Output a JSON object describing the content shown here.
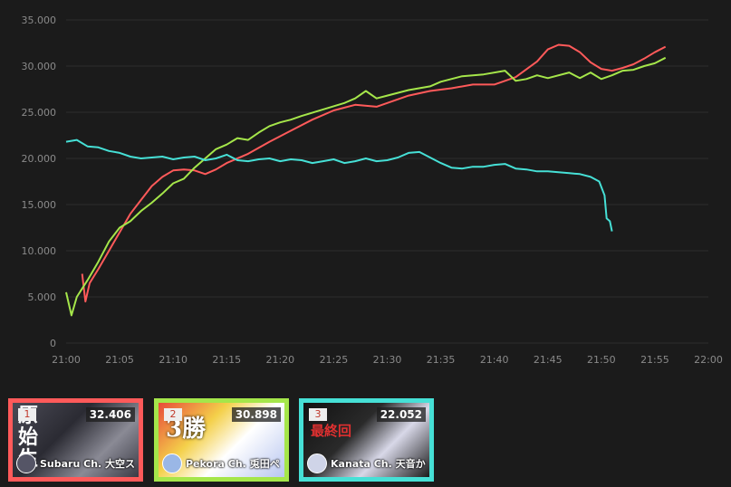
{
  "chart_data": {
    "type": "line",
    "x_ticks": [
      "21:00",
      "21:05",
      "21:10",
      "21:15",
      "21:20",
      "21:25",
      "21:30",
      "21:35",
      "21:40",
      "21:45",
      "21:50",
      "21:55",
      "22:00"
    ],
    "y_ticks": [
      "35.000",
      "30.000",
      "25.000",
      "20.000",
      "15.000",
      "10.000",
      "5.000",
      "0"
    ],
    "ylim": [
      0,
      35000
    ],
    "xlim_minutes": [
      0,
      60
    ],
    "grid": true,
    "series": [
      {
        "name": "Subaru Ch.",
        "color": "#ff5a5a",
        "points": [
          [
            1.5,
            7500
          ],
          [
            1.8,
            4500
          ],
          [
            2.2,
            6500
          ],
          [
            3,
            8000
          ],
          [
            4,
            10000
          ],
          [
            5,
            12000
          ],
          [
            6,
            14000
          ],
          [
            7,
            15500
          ],
          [
            8,
            17000
          ],
          [
            9,
            18000
          ],
          [
            10,
            18700
          ],
          [
            11,
            18800
          ],
          [
            12,
            18700
          ],
          [
            13,
            18300
          ],
          [
            14,
            18800
          ],
          [
            15,
            19500
          ],
          [
            17,
            20500
          ],
          [
            19,
            21800
          ],
          [
            21,
            23000
          ],
          [
            23,
            24200
          ],
          [
            25,
            25200
          ],
          [
            27,
            25800
          ],
          [
            29,
            25600
          ],
          [
            30,
            26000
          ],
          [
            32,
            26800
          ],
          [
            34,
            27300
          ],
          [
            36,
            27600
          ],
          [
            38,
            28000
          ],
          [
            40,
            28000
          ],
          [
            42,
            28800
          ],
          [
            44,
            30500
          ],
          [
            45,
            31800
          ],
          [
            46,
            32300
          ],
          [
            47,
            32200
          ],
          [
            48,
            31500
          ],
          [
            49,
            30400
          ],
          [
            50,
            29700
          ],
          [
            51,
            29500
          ],
          [
            52,
            29800
          ],
          [
            53,
            30200
          ],
          [
            54,
            30800
          ],
          [
            55,
            31500
          ],
          [
            56,
            32100
          ]
        ]
      },
      {
        "name": "Pekora Ch.",
        "color": "#a5e64a",
        "points": [
          [
            0,
            5500
          ],
          [
            0.5,
            3000
          ],
          [
            1,
            5000
          ],
          [
            2,
            6800
          ],
          [
            3,
            8800
          ],
          [
            4,
            11000
          ],
          [
            5,
            12500
          ],
          [
            6,
            13200
          ],
          [
            7,
            14300
          ],
          [
            8,
            15200
          ],
          [
            9,
            16200
          ],
          [
            10,
            17300
          ],
          [
            11,
            17800
          ],
          [
            12,
            19000
          ],
          [
            13,
            20000
          ],
          [
            14,
            21000
          ],
          [
            15,
            21500
          ],
          [
            16,
            22200
          ],
          [
            17,
            22000
          ],
          [
            18,
            22800
          ],
          [
            19,
            23500
          ],
          [
            20,
            23900
          ],
          [
            21,
            24200
          ],
          [
            22,
            24600
          ],
          [
            24,
            25300
          ],
          [
            26,
            26000
          ],
          [
            27,
            26500
          ],
          [
            28,
            27300
          ],
          [
            29,
            26500
          ],
          [
            30,
            26800
          ],
          [
            32,
            27400
          ],
          [
            34,
            27800
          ],
          [
            35,
            28300
          ],
          [
            37,
            28900
          ],
          [
            39,
            29100
          ],
          [
            41,
            29500
          ],
          [
            42,
            28400
          ],
          [
            43,
            28600
          ],
          [
            44,
            29000
          ],
          [
            45,
            28700
          ],
          [
            47,
            29300
          ],
          [
            48,
            28700
          ],
          [
            49,
            29300
          ],
          [
            50,
            28600
          ],
          [
            51,
            29000
          ],
          [
            52,
            29500
          ],
          [
            53,
            29600
          ],
          [
            54,
            30000
          ],
          [
            55,
            30300
          ],
          [
            56,
            30900
          ]
        ]
      },
      {
        "name": "Kanata Ch.",
        "color": "#46e0d6",
        "points": [
          [
            0,
            21800
          ],
          [
            1,
            22000
          ],
          [
            2,
            21300
          ],
          [
            3,
            21200
          ],
          [
            4,
            20800
          ],
          [
            5,
            20600
          ],
          [
            6,
            20200
          ],
          [
            7,
            20000
          ],
          [
            8,
            20100
          ],
          [
            9,
            20200
          ],
          [
            10,
            19900
          ],
          [
            11,
            20100
          ],
          [
            12,
            20200
          ],
          [
            13,
            19800
          ],
          [
            14,
            20000
          ],
          [
            15,
            20400
          ],
          [
            16,
            19800
          ],
          [
            17,
            19700
          ],
          [
            18,
            19900
          ],
          [
            19,
            20000
          ],
          [
            20,
            19700
          ],
          [
            21,
            19900
          ],
          [
            22,
            19800
          ],
          [
            23,
            19500
          ],
          [
            24,
            19700
          ],
          [
            25,
            19900
          ],
          [
            26,
            19500
          ],
          [
            27,
            19700
          ],
          [
            28,
            20000
          ],
          [
            29,
            19700
          ],
          [
            30,
            19800
          ],
          [
            31,
            20100
          ],
          [
            32,
            20600
          ],
          [
            33,
            20700
          ],
          [
            34,
            20100
          ],
          [
            35,
            19500
          ],
          [
            36,
            19000
          ],
          [
            37,
            18900
          ],
          [
            38,
            19100
          ],
          [
            39,
            19100
          ],
          [
            40,
            19300
          ],
          [
            41,
            19400
          ],
          [
            42,
            18900
          ],
          [
            43,
            18800
          ],
          [
            44,
            18600
          ],
          [
            45,
            18600
          ],
          [
            46,
            18500
          ],
          [
            47,
            18400
          ],
          [
            48,
            18300
          ],
          [
            49,
            18000
          ],
          [
            49.8,
            17500
          ],
          [
            50.3,
            16000
          ],
          [
            50.5,
            13500
          ],
          [
            50.8,
            13200
          ],
          [
            51,
            12100
          ]
        ]
      }
    ]
  },
  "cards": [
    {
      "rank": "1",
      "viewers": "32.406",
      "channel": "Subaru Ch. 大空ス",
      "border": "#ff5a5a"
    },
    {
      "rank": "2",
      "viewers": "30.898",
      "channel": "Pekora Ch. 兎田ペ",
      "border": "#a5e64a"
    },
    {
      "rank": "3",
      "viewers": "22.052",
      "channel": "Kanata Ch. 天音か",
      "border": "#46e0d6"
    }
  ]
}
